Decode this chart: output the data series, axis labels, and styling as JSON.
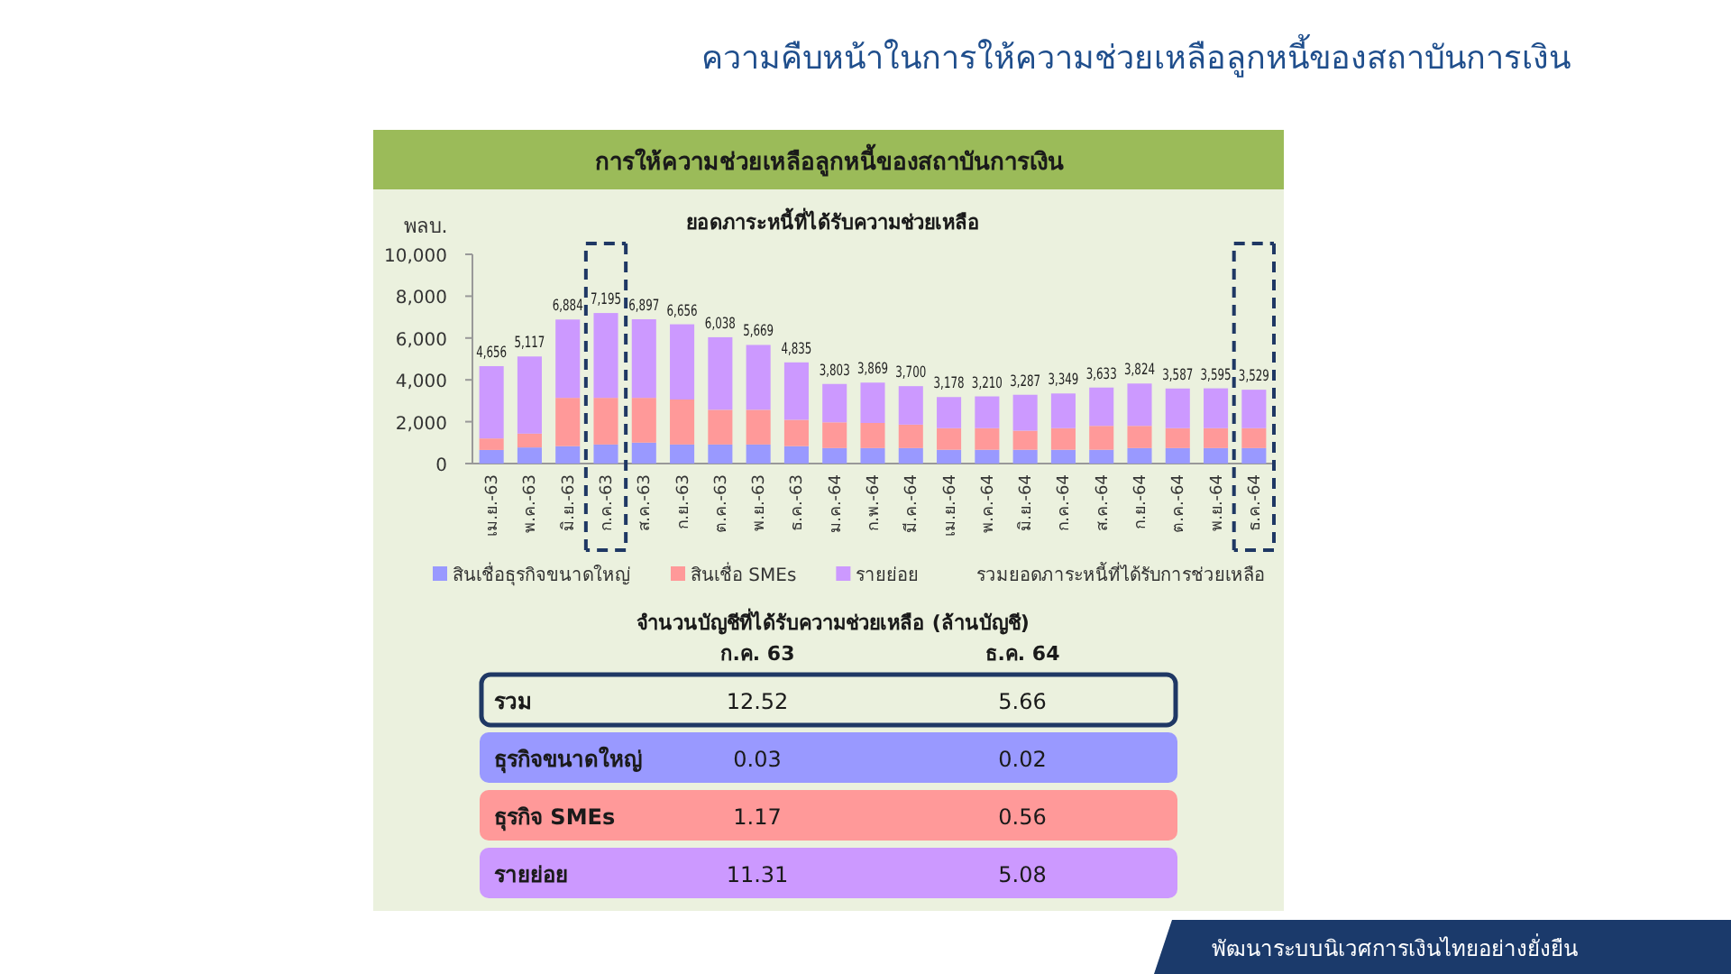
{
  "chart_data": [
    {
      "type": "other",
      "title": "ความคืบหน้าในการให้ความช่วยเหลือลูกหนี้ของสถาบันการเงิน",
      "subtitle": "การให้ความช่วยเหลือลูกหนี้ของสถาบันการเงิน",
      "annotations": [
        "พัฒนาระบบนิเวศการเงินไทยอย่างยั่งยืน"
      ]
    },
    {
      "type": "bar",
      "stacked": true,
      "title": "ยอดภาระหนี้ที่ได้รับความช่วยเหลือ",
      "ylabel": "พลบ.",
      "categories": [
        "เม.ย.-63",
        "พ.ค.-63",
        "มิ.ย.-63",
        "ก.ค.-63",
        "ส.ค.-63",
        "ก.ย.-63",
        "ต.ค.-63",
        "พ.ย.-63",
        "ธ.ค.-63",
        "ม.ค.-64",
        "ก.พ.-64",
        "มี.ค.-64",
        "เม.ย.-64",
        "พ.ค.-64",
        "มิ.ย.-64",
        "ก.ค.-64",
        "ส.ค.-64",
        "ก.ย.-64",
        "ต.ค.-64",
        "พ.ย.-64",
        "ธ.ค.-64"
      ],
      "series": [
        {
          "name": "สินเชื่อธุรกิจขนาดใหญ่",
          "color": "#9999ff",
          "values": [
            650,
            770,
            830,
            910,
            1000,
            910,
            910,
            910,
            830,
            740,
            740,
            740,
            660,
            660,
            660,
            660,
            660,
            740,
            740,
            740,
            740
          ]
        },
        {
          "name": "สินเชื่อ SMEs",
          "color": "#ff9999",
          "values": [
            550,
            660,
            2310,
            2230,
            2140,
            2150,
            1660,
            1660,
            1260,
            1230,
            1200,
            1120,
            1030,
            1030,
            910,
            1030,
            1140,
            1060,
            950,
            950,
            950
          ]
        },
        {
          "name": "รายย่อย",
          "color": "#cc99ff",
          "values": [
            3456,
            3687,
            3744,
            4055,
            3757,
            3596,
            3468,
            3099,
            2745,
            1833,
            1929,
            1840,
            1488,
            1520,
            1717,
            1659,
            1833,
            2024,
            1897,
            1905,
            1839
          ]
        }
      ],
      "totals": [
        "4,656",
        "5,117",
        "6,884",
        "7,195",
        "6,897",
        "6,656",
        "6,038",
        "5,669",
        "4,835",
        "3,803",
        "3,869",
        "3,700",
        "3,178",
        "3,210",
        "3,287",
        "3,349",
        "3,633",
        "3,824",
        "3,587",
        "3,595",
        "3,529"
      ],
      "ylim": [
        0,
        10000
      ],
      "yticks": [
        0,
        {
          "value": 2000,
          "label": "2,000"
        },
        {
          "value": 4000,
          "label": "4,000"
        },
        {
          "value": 6000,
          "label": "6,000"
        },
        {
          "value": 8000,
          "label": "8,000"
        },
        {
          "value": 10000,
          "label": "10,000"
        }
      ],
      "legend": "bottom",
      "annotations": [
        "รวมยอดภาระหนี้ที่ได้รับการช่วยเหลือ"
      ]
    },
    {
      "type": "other",
      "title": "จำนวนบัญชีที่ได้รับความช่วยเหลือ (ล้านบัญชี)",
      "categories": [
        "รวม",
        "ธุรกิจขนาดใหญ่",
        "ธุรกิจ SMEs",
        "รายย่อย"
      ],
      "series": [
        {
          "name": "ก.ค. 63",
          "colors": [
            "#1f3864",
            "#9999ff",
            "#ff9999",
            "#cc99ff"
          ],
          "values": [
            12.52,
            0.03,
            1.17,
            11.31
          ]
        },
        {
          "name": "ธ.ค. 64",
          "values": [
            5.66,
            0.02,
            0.56,
            5.08
          ]
        }
      ],
      "data_labels": true
    }
  ]
}
